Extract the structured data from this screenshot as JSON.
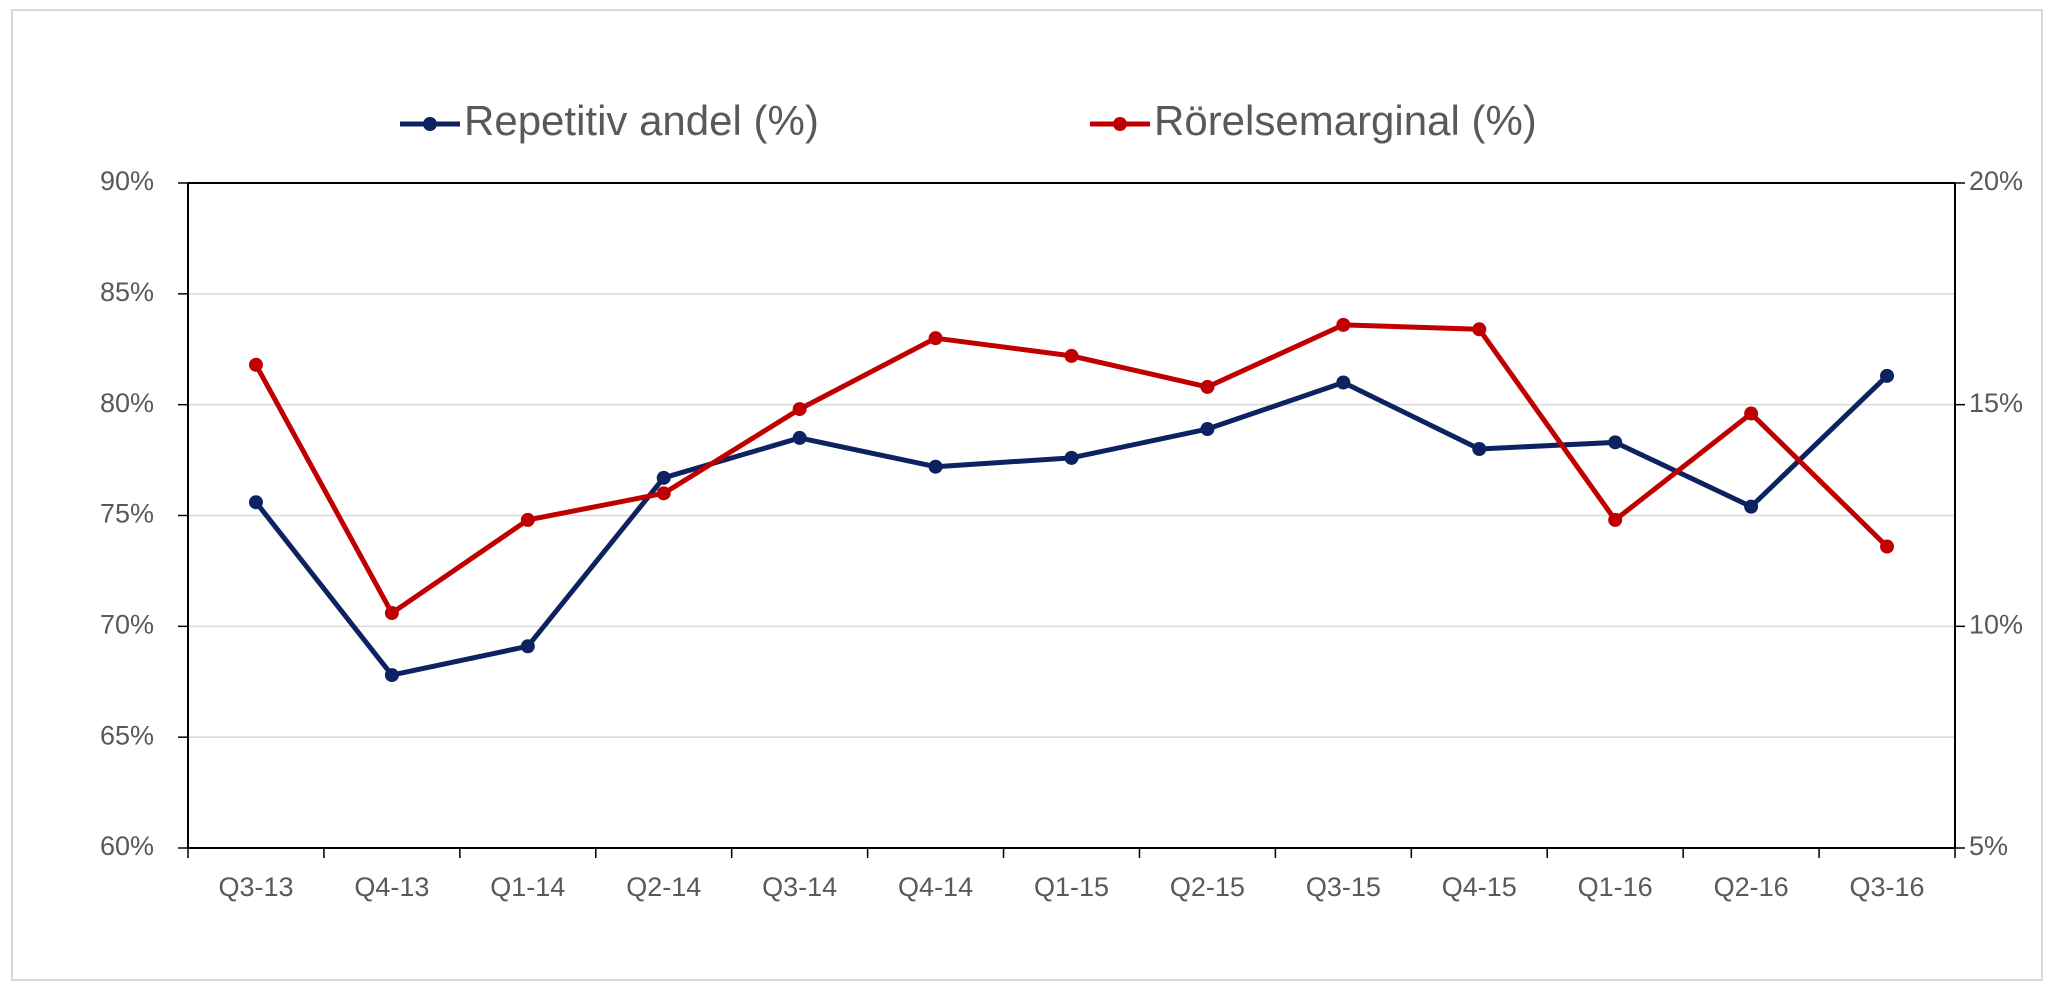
{
  "chart_data": {
    "type": "line",
    "categories": [
      "Q3-13",
      "Q4-13",
      "Q1-14",
      "Q2-14",
      "Q3-14",
      "Q4-14",
      "Q1-15",
      "Q2-15",
      "Q3-15",
      "Q4-15",
      "Q1-16",
      "Q2-16",
      "Q3-16"
    ],
    "series": [
      {
        "name": "Repetitiv andel (%)",
        "color": "#0d2260",
        "values": [
          75.6,
          67.8,
          69.1,
          76.7,
          78.5,
          77.2,
          77.6,
          78.9,
          81.0,
          78.0,
          78.3,
          75.4,
          81.3
        ]
      },
      {
        "name": "Rörelsemarginal (%)",
        "color": "#c00000",
        "axis": "y2",
        "values": [
          15.9,
          10.3,
          12.4,
          13.0,
          14.9,
          16.5,
          16.1,
          15.4,
          16.8,
          16.7,
          12.4,
          14.8,
          11.8
        ]
      }
    ],
    "ylim": [
      60,
      90
    ],
    "yticks": [
      {
        "value": 60,
        "label": "60%"
      },
      {
        "value": 65,
        "label": "65%"
      },
      {
        "value": 70,
        "label": "70%"
      },
      {
        "value": 75,
        "label": "75%"
      },
      {
        "value": 80,
        "label": "80%"
      },
      {
        "value": 85,
        "label": "85%"
      },
      {
        "value": 90,
        "label": "90%"
      }
    ],
    "y2lim": [
      5,
      20
    ],
    "y2ticks": [
      {
        "value": 5,
        "label": "5%"
      },
      {
        "value": 10,
        "label": "10%"
      },
      {
        "value": 15,
        "label": "15%"
      },
      {
        "value": 20,
        "label": "20%"
      }
    ],
    "grid": true,
    "legend": "top"
  }
}
